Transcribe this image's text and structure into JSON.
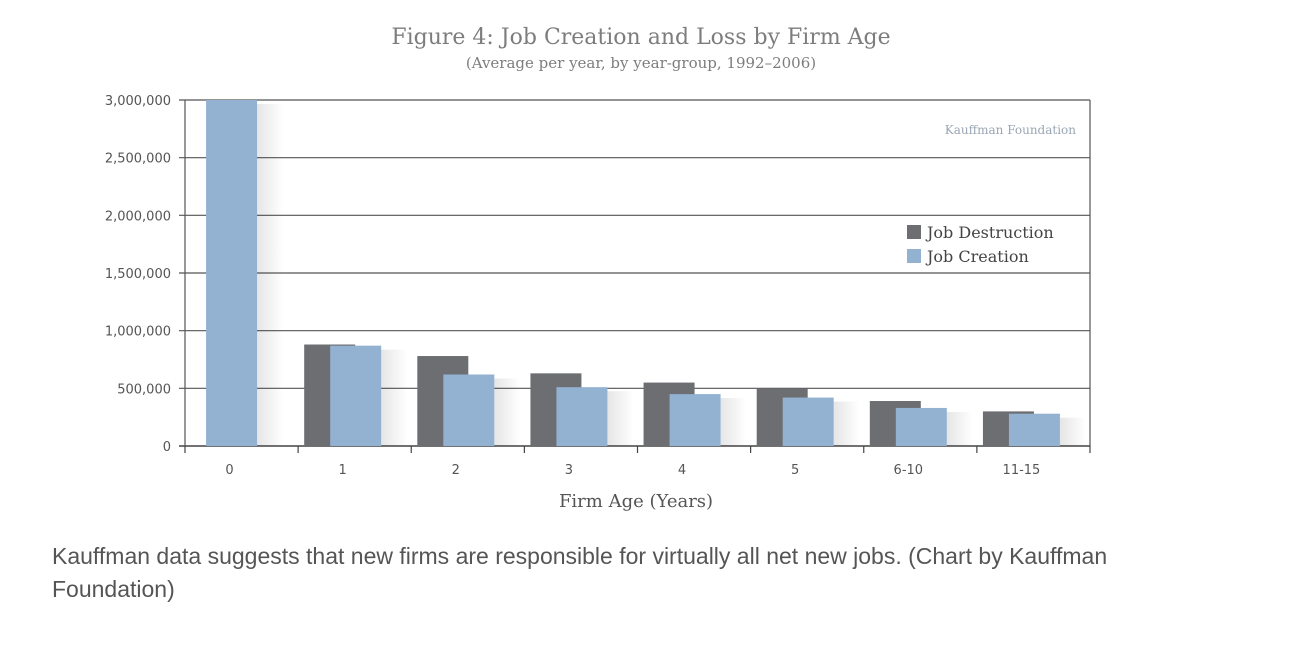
{
  "chart_data": {
    "type": "bar",
    "title": "Figure 4: Job Creation and Loss by Firm Age",
    "subtitle": "(Average per year, by year-group, 1992–2006)",
    "xlabel": "Firm Age (Years)",
    "ylabel": "",
    "categories": [
      "0",
      "1",
      "2",
      "3",
      "4",
      "5",
      "6-10",
      "11-15"
    ],
    "series": [
      {
        "name": "Job Destruction",
        "color": "#6d6e71",
        "values": [
          0,
          880000,
          780000,
          630000,
          550000,
          500000,
          390000,
          300000
        ]
      },
      {
        "name": "Job Creation",
        "color": "#93b1d1",
        "values": [
          3000000,
          870000,
          620000,
          510000,
          450000,
          420000,
          330000,
          280000
        ]
      }
    ],
    "ylim": [
      0,
      3000000
    ],
    "yticks": [
      "0",
      "500,000",
      "1,000,000",
      "1,500,000",
      "2,000,000",
      "2,500,000",
      "3,000,000"
    ],
    "ytick_values": [
      0,
      500000,
      1000000,
      1500000,
      2000000,
      2500000,
      3000000
    ],
    "grid": true,
    "legend_position": "right",
    "source_label": "Kauffman Foundation"
  },
  "caption": "Kauffman data suggests that new firms are responsible for virtually all net new jobs. (Chart by Kauffman Foundation)"
}
